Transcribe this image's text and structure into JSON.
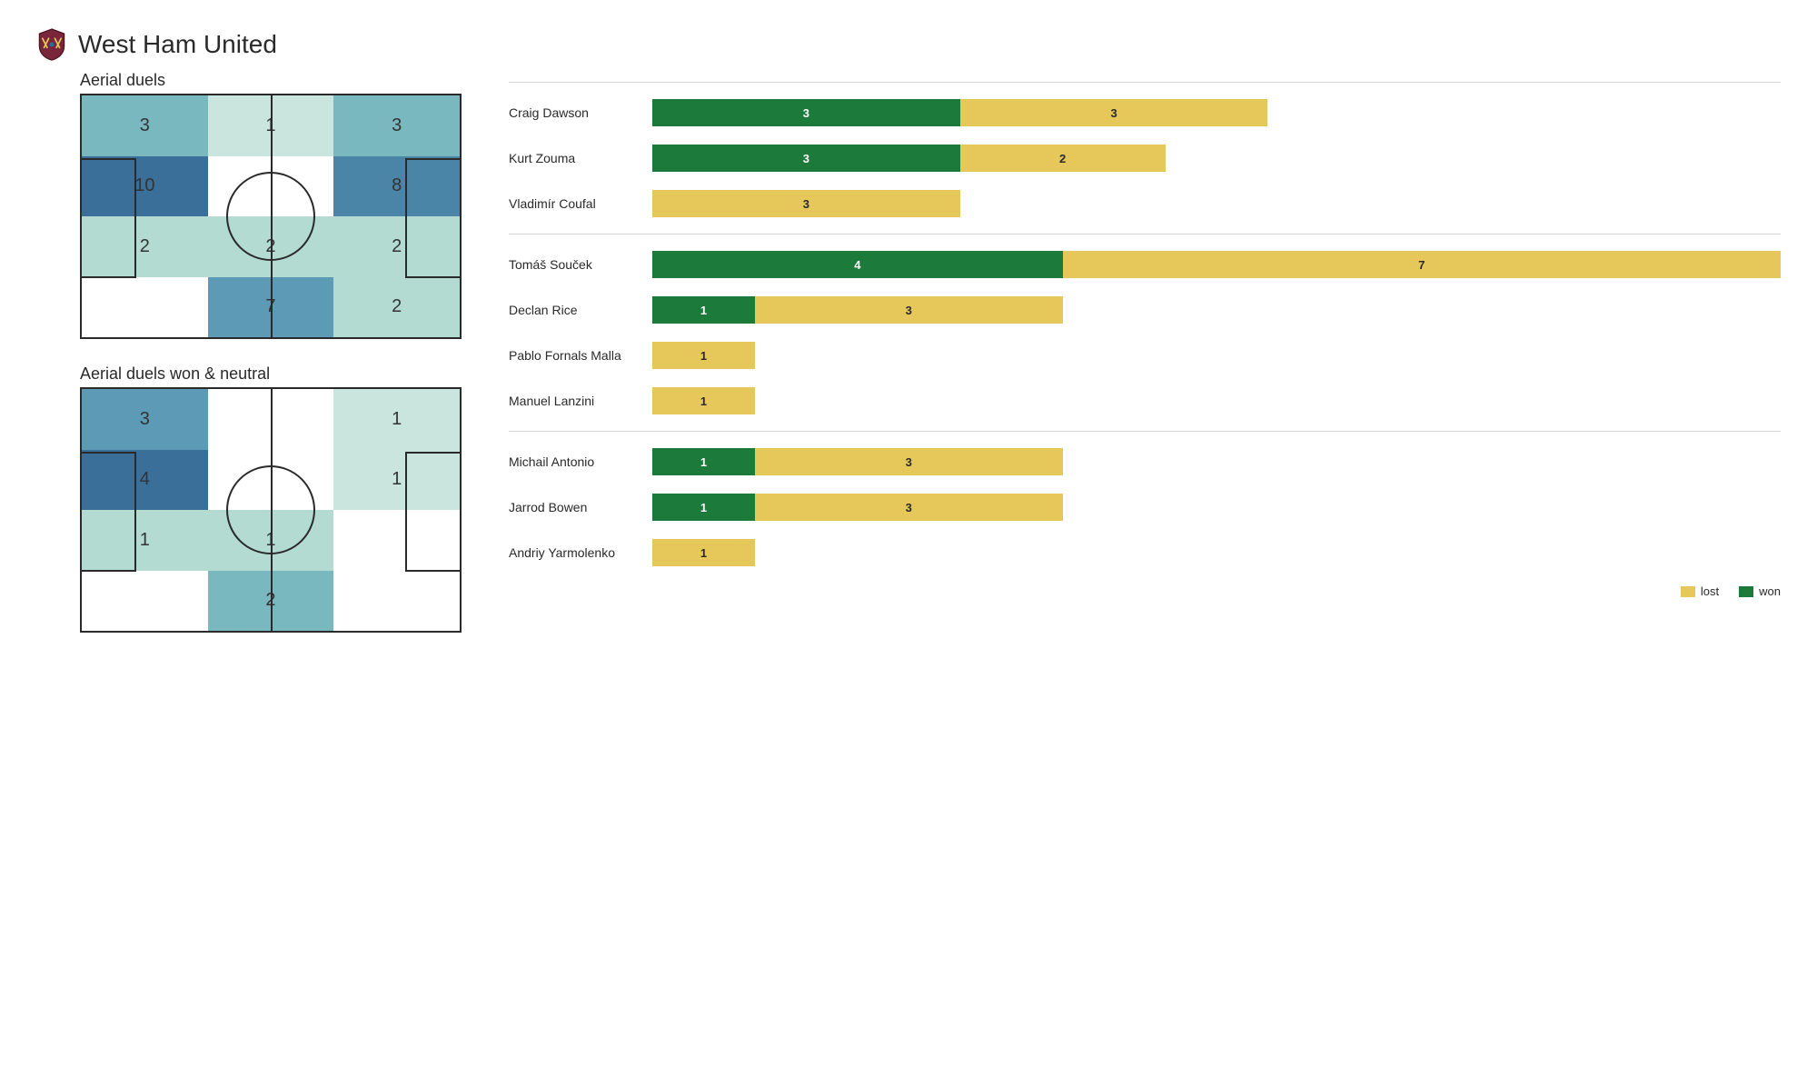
{
  "team": "West Ham United",
  "colors": {
    "won": "#1c7a3a",
    "lost": "#e5c75a",
    "legend_labels": {
      "won": "won",
      "lost": "lost"
    },
    "heat_scale": {
      "0": "#ffffff",
      "1": "#c9e5de",
      "2": "#b3dbd2",
      "3": "#7ab8c0",
      "4": "#5c9ab6",
      "7": "#5c9ab6",
      "8": "#4a84a6",
      "10": "#3a6f99"
    },
    "pitch_line": "#2a2a2a",
    "text_on_won": "#ffffff",
    "text_on_lost": "#2a2a2a"
  },
  "pitches": {
    "a": {
      "title": "Aerial duels",
      "grid": [
        [
          3,
          1,
          3
        ],
        [
          10,
          null,
          8
        ],
        [
          2,
          2,
          2
        ],
        [
          null,
          7,
          2
        ]
      ],
      "fills": [
        [
          "3",
          "1",
          "3"
        ],
        [
          "10",
          "0",
          "8"
        ],
        [
          "2",
          "2",
          "2"
        ],
        [
          "0",
          "7",
          "2"
        ]
      ],
      "middle_top_light": true
    },
    "b": {
      "title": "Aerial duels won & neutral",
      "grid": [
        [
          3,
          null,
          1
        ],
        [
          4,
          null,
          1
        ],
        [
          1,
          1,
          null
        ],
        [
          null,
          2,
          null
        ]
      ],
      "fills": [
        [
          "7",
          "0",
          "1"
        ],
        [
          "10",
          "0",
          "1"
        ],
        [
          "2",
          "2",
          "0"
        ],
        [
          "0",
          "3",
          "0"
        ]
      ]
    }
  },
  "bar_scale_max": 11,
  "groups": [
    [
      {
        "name": "Craig Dawson",
        "won": 3,
        "lost": 3
      },
      {
        "name": "Kurt Zouma",
        "won": 3,
        "lost": 2
      },
      {
        "name": "Vladimír Coufal",
        "won": 0,
        "lost": 3
      }
    ],
    [
      {
        "name": "Tomáš Souček",
        "won": 4,
        "lost": 7
      },
      {
        "name": "Declan Rice",
        "won": 1,
        "lost": 3
      },
      {
        "name": "Pablo Fornals Malla",
        "won": 0,
        "lost": 1
      },
      {
        "name": "Manuel Lanzini",
        "won": 0,
        "lost": 1
      }
    ],
    [
      {
        "name": "Michail Antonio",
        "won": 1,
        "lost": 3
      },
      {
        "name": "Jarrod Bowen",
        "won": 1,
        "lost": 3
      },
      {
        "name": "Andriy Yarmolenko",
        "won": 0,
        "lost": 1
      }
    ]
  ]
}
